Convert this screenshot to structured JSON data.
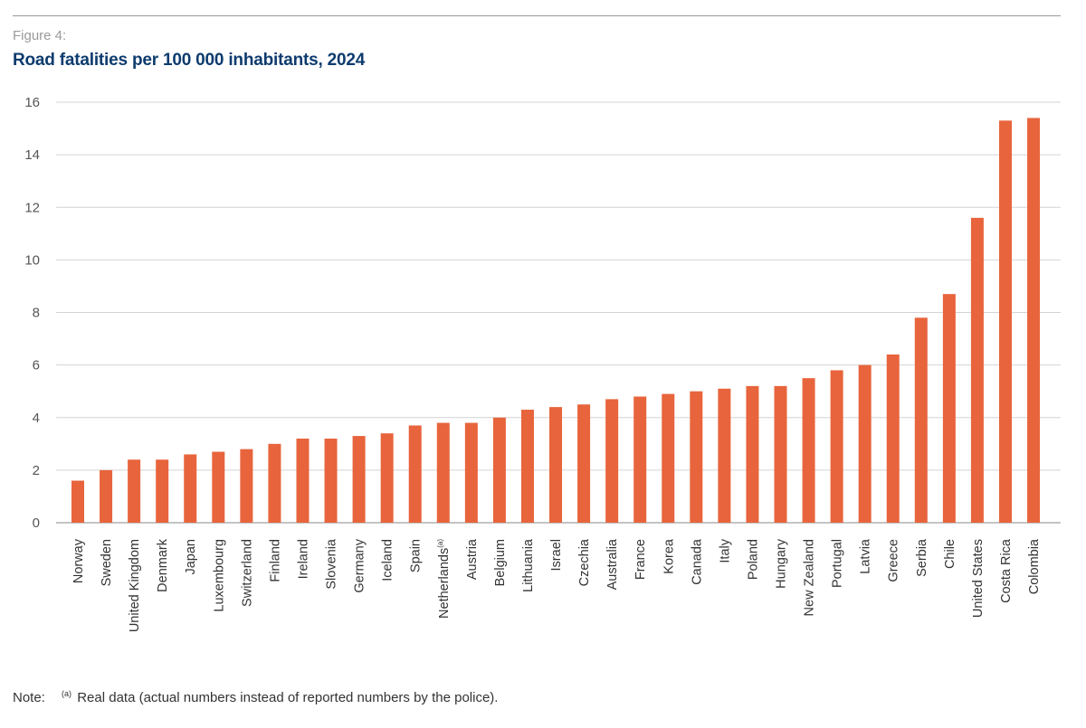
{
  "header": {
    "figure_label": "Figure 4:",
    "title": "Road fatalities per 100 000 inhabitants, 2024"
  },
  "note": {
    "label": "Note:",
    "marker": "(a)",
    "text": "Real data (actual numbers instead of reported numbers by the police)."
  },
  "colors": {
    "bar": "#e8643c",
    "grid": "#d4d4d4",
    "axis": "#888888",
    "title": "#0d3b6e"
  },
  "chart_data": {
    "type": "bar",
    "title": "Road fatalities per 100 000 inhabitants, 2024",
    "xlabel": "",
    "ylabel": "",
    "ylim": [
      0,
      16
    ],
    "yticks": [
      0,
      2,
      4,
      6,
      8,
      10,
      12,
      14,
      16
    ],
    "grid": true,
    "legend": "none",
    "categories": [
      "Norway",
      "Sweden",
      "United Kingdom",
      "Denmark",
      "Japan",
      "Luxembourg",
      "Switzerland",
      "Finland",
      "Ireland",
      "Slovenia",
      "Germany",
      "Iceland",
      "Spain",
      "Netherlands",
      "Austria",
      "Belgium",
      "Lithuania",
      "Israel",
      "Czechia",
      "Australia",
      "France",
      "Korea",
      "Canada",
      "Italy",
      "Poland",
      "Hungary",
      "New Zealand",
      "Portugal",
      "Latvia",
      "Greece",
      "Serbia",
      "Chile",
      "United States",
      "Costa Rica",
      "Colombia"
    ],
    "category_superscripts": {
      "Netherlands": "(a)"
    },
    "values": [
      1.6,
      2.0,
      2.4,
      2.4,
      2.6,
      2.7,
      2.8,
      3.0,
      3.2,
      3.2,
      3.3,
      3.4,
      3.7,
      3.8,
      3.8,
      4.0,
      4.3,
      4.4,
      4.5,
      4.7,
      4.8,
      4.9,
      5.0,
      5.1,
      5.2,
      5.2,
      5.5,
      5.8,
      6.0,
      6.4,
      7.8,
      8.7,
      11.6,
      15.3,
      15.4
    ]
  }
}
